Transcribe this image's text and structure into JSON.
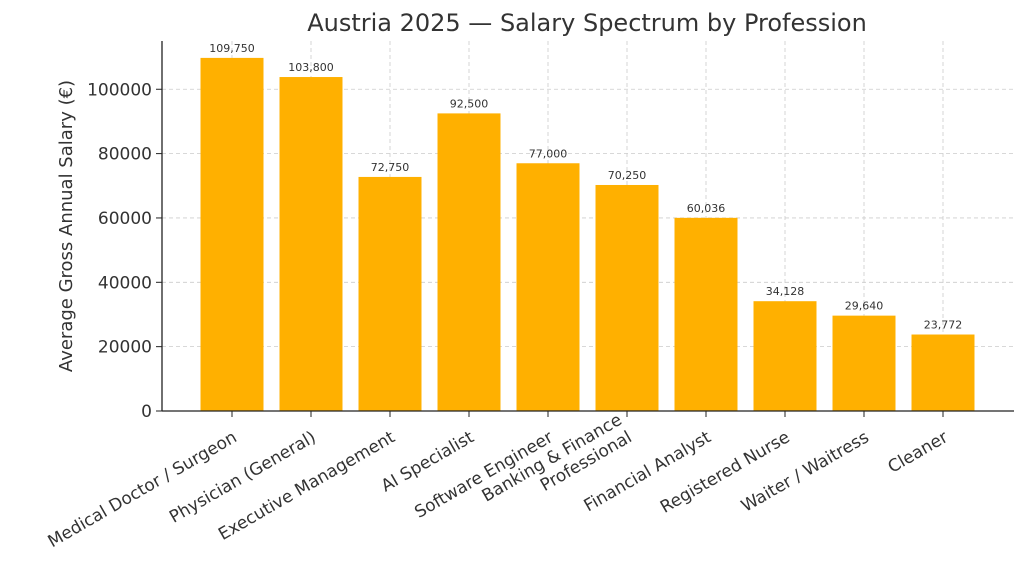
{
  "chart_data": {
    "type": "bar",
    "title": "Austria 2025 — Salary Spectrum by Profession",
    "xlabel": "",
    "ylabel": "Average Gross Annual Salary (€)",
    "categories": [
      [
        "Medical Doctor / Surgeon"
      ],
      [
        "Physician (General)"
      ],
      [
        "Executive Management"
      ],
      [
        "AI Specialist"
      ],
      [
        "Software Engineer"
      ],
      [
        "Banking & Finance",
        "Professional"
      ],
      [
        "Financial Analyst"
      ],
      [
        "Registered Nurse"
      ],
      [
        "Waiter / Waitress"
      ],
      [
        "Cleaner"
      ]
    ],
    "values": [
      109750,
      103800,
      72750,
      92500,
      77000,
      70250,
      60036,
      34128,
      29640,
      23772
    ],
    "value_labels": [
      "109,750",
      "103,800",
      "72,750",
      "92,500",
      "77,000",
      "70,250",
      "60,036",
      "34,128",
      "29,640",
      "23,772"
    ],
    "yticks": [
      0,
      20000,
      40000,
      60000,
      80000,
      100000
    ],
    "ylim": [
      0,
      115000
    ],
    "grid": true,
    "bar_color": "#FFB000"
  }
}
